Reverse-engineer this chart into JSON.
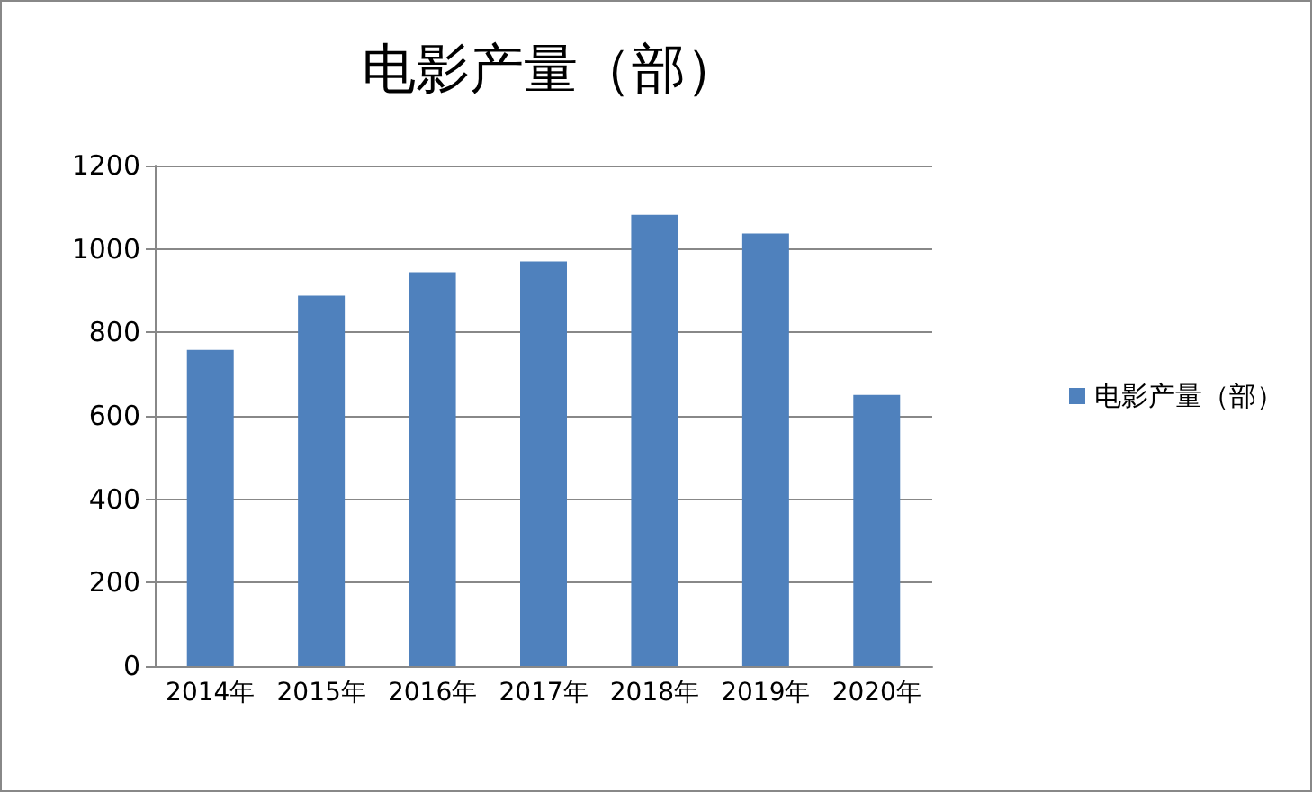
{
  "chart_data": {
    "type": "bar",
    "title": "电影产量（部）",
    "categories": [
      "2014年",
      "2015年",
      "2016年",
      "2017年",
      "2018年",
      "2019年",
      "2020年"
    ],
    "series": [
      {
        "name": "电影产量（部）",
        "color": "#4f81bd",
        "values": [
          758,
          888,
          944,
          970,
          1082,
          1037,
          650
        ]
      }
    ],
    "ylim": [
      0,
      1200
    ],
    "yticks": [
      0,
      200,
      400,
      600,
      800,
      1000,
      1200
    ],
    "grid": "y",
    "legend": "right"
  }
}
